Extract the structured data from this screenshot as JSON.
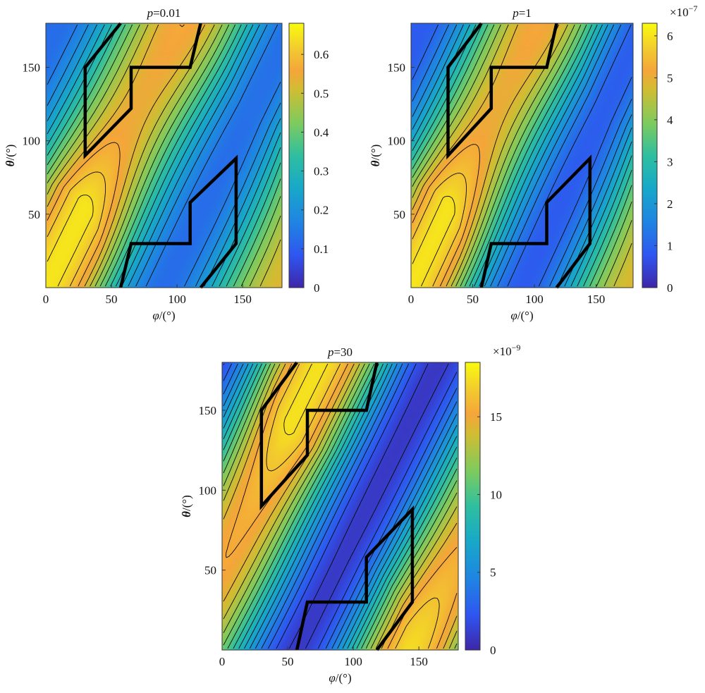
{
  "figure": {
    "kind": "contour maps with colorbars"
  },
  "chart_data": [
    {
      "type": "heatmap",
      "title": "p=0.01",
      "title_var": "p",
      "title_value": "=0.01",
      "xlabel_var": "φ",
      "xlabel_unit": "/(°)",
      "ylabel_var": "θ",
      "ylabel_unit": "/(°)",
      "xlim": [
        0,
        180
      ],
      "ylim": [
        0,
        180
      ],
      "xticks": [
        "0",
        "50",
        "100",
        "150"
      ],
      "yticks": [
        "50",
        "100",
        "150"
      ],
      "colorbar": {
        "min": 0,
        "max": 0.68,
        "ticks": [
          "0",
          "0.1",
          "0.2",
          "0.3",
          "0.4",
          "0.5",
          "0.6"
        ],
        "exponent": ""
      },
      "field": {
        "phase": 0,
        "k": 0.55,
        "alpha": 0.8,
        "offset": 0.15,
        "maxima": [
          [
            0,
            30
          ],
          [
            180,
            150
          ]
        ]
      },
      "region": [
        [
          57,
          0
        ],
        [
          65,
          30
        ],
        [
          110,
          30
        ],
        [
          110,
          58
        ],
        [
          145,
          88
        ],
        [
          145,
          30
        ],
        [
          118,
          0
        ]
      ],
      "region2": [
        [
          57,
          180
        ],
        [
          30,
          150
        ],
        [
          30,
          90
        ],
        [
          65,
          122
        ],
        [
          65,
          150
        ],
        [
          110,
          150
        ],
        [
          118,
          180
        ]
      ]
    },
    {
      "type": "heatmap",
      "title": "p=1",
      "title_var": "p",
      "title_value": "=1",
      "xlabel_var": "φ",
      "xlabel_unit": "/(°)",
      "ylabel_var": "θ",
      "ylabel_unit": "/(°)",
      "xlim": [
        0,
        180
      ],
      "ylim": [
        0,
        180
      ],
      "xticks": [
        "0",
        "50",
        "100",
        "150"
      ],
      "yticks": [
        "50",
        "100",
        "150"
      ],
      "colorbar": {
        "min": 0,
        "max": 6.3,
        "ticks": [
          "0",
          "1",
          "2",
          "3",
          "4",
          "5",
          "6"
        ],
        "exponent": "−7"
      },
      "field": {
        "phase": 0,
        "k": 0.55,
        "alpha": 0.8,
        "offset": 0.1,
        "maxima": [
          [
            0,
            30
          ],
          [
            180,
            150
          ]
        ]
      },
      "region": [
        [
          57,
          0
        ],
        [
          65,
          30
        ],
        [
          110,
          30
        ],
        [
          110,
          58
        ],
        [
          145,
          88
        ],
        [
          145,
          30
        ],
        [
          118,
          0
        ]
      ],
      "region2": [
        [
          57,
          180
        ],
        [
          30,
          150
        ],
        [
          30,
          90
        ],
        [
          65,
          122
        ],
        [
          65,
          150
        ],
        [
          110,
          150
        ],
        [
          118,
          180
        ]
      ]
    },
    {
      "type": "heatmap",
      "title": "p=30",
      "title_var": "p",
      "title_value": "=30",
      "xlabel_var": "φ",
      "xlabel_unit": "/(°)",
      "ylabel_var": "θ",
      "ylabel_unit": "/(°)",
      "xlim": [
        0,
        180
      ],
      "ylim": [
        0,
        180
      ],
      "xticks": [
        "0",
        "50",
        "100",
        "150"
      ],
      "yticks": [
        "50",
        "100",
        "150"
      ],
      "colorbar": {
        "min": 0,
        "max": 18.5,
        "ticks": [
          "0",
          "5",
          "10",
          "15"
        ],
        "exponent": "−9"
      },
      "field": {
        "phase": 1.15,
        "k": 0.6,
        "alpha": 0.85,
        "offset": 0.0,
        "maxima": [
          [
            100,
            10
          ],
          [
            80,
            170
          ]
        ]
      },
      "region": [
        [
          57,
          0
        ],
        [
          65,
          30
        ],
        [
          110,
          30
        ],
        [
          110,
          58
        ],
        [
          145,
          88
        ],
        [
          145,
          30
        ],
        [
          118,
          0
        ]
      ],
      "region2": [
        [
          57,
          180
        ],
        [
          30,
          150
        ],
        [
          30,
          90
        ],
        [
          65,
          122
        ],
        [
          65,
          150
        ],
        [
          110,
          150
        ],
        [
          118,
          180
        ]
      ]
    }
  ]
}
